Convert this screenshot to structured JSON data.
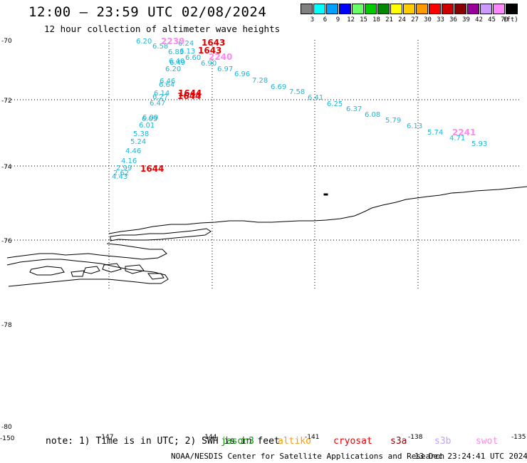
{
  "header": {
    "title": "12:00 – 23:59 UTC 02/08/2024",
    "subtitle": "12 hour collection of altimeter wave heights"
  },
  "legend": {
    "unit_label": "(ft)",
    "levels": [
      {
        "label": "3",
        "color": "#808080"
      },
      {
        "label": "6",
        "color": "#00ffff"
      },
      {
        "label": "9",
        "color": "#00a0ff"
      },
      {
        "label": "12",
        "color": "#0000ff"
      },
      {
        "label": "15",
        "color": "#66ff66"
      },
      {
        "label": "18",
        "color": "#00cc00"
      },
      {
        "label": "21",
        "color": "#008800"
      },
      {
        "label": "24",
        "color": "#ffff00"
      },
      {
        "label": "27",
        "color": "#ffcc00"
      },
      {
        "label": "30",
        "color": "#ff9900"
      },
      {
        "label": "33",
        "color": "#ff0000"
      },
      {
        "label": "36",
        "color": "#cc0000"
      },
      {
        "label": "39",
        "color": "#880000"
      },
      {
        "label": "42",
        "color": "#990099"
      },
      {
        "label": "45",
        "color": "#cc99ff"
      },
      {
        "label": "70",
        "color": "#ff88ff"
      },
      {
        "label": "",
        "color": "#000000"
      }
    ]
  },
  "map": {
    "lat_labels": [
      "-70",
      "-72",
      "-74",
      "-76",
      "-78",
      "-80"
    ],
    "lon_labels": [
      "-150",
      "-147",
      "-144",
      "-141",
      "-138",
      "-135"
    ],
    "track_color": "#1ab8d8",
    "time_color_red": "#e00000",
    "time_color_pink": "#ff88ee",
    "track_values": [
      "6.20",
      "6.58",
      "6.24",
      "6.83",
      "6.13",
      "6.60",
      "6.40",
      "6.49",
      "6.20",
      "6.90",
      "6.97",
      "6.96",
      "7.28",
      "6.69",
      "7.58",
      "6.41",
      "6.25",
      "6.37",
      "6.08",
      "5.79",
      "6.13",
      "5.74",
      "4.71",
      "5.93",
      "6.46",
      "6.64",
      "6.14",
      "6.27",
      "6.47",
      "6.09",
      "6.09",
      "6.01",
      "5.38",
      "5.24",
      "4.46",
      "4.16",
      "2.99",
      "2.62",
      "4.43"
    ],
    "time_labels": [
      "2239",
      "1643",
      "1643",
      "2240",
      "1644",
      "1644",
      "1644",
      "2241"
    ]
  },
  "footer": {
    "note": "note: 1) Time is in UTC; 2) SWH is in feet",
    "satellites": [
      {
        "name": "jason3",
        "color": "#009900"
      },
      {
        "name": "altiko",
        "color": "#ff9900"
      },
      {
        "name": "cryosat",
        "color": "#ee0000"
      },
      {
        "name": "s3a",
        "color": "#990000"
      },
      {
        "name": "s3b",
        "color": "#c0a0ff"
      },
      {
        "name": "swot",
        "color": "#ff88ee"
      }
    ],
    "credit": "NOAA/NESDIS Center for Satellite Applications and Research",
    "timestamp": "13 Dec 23:24:41 UTC 2024"
  }
}
